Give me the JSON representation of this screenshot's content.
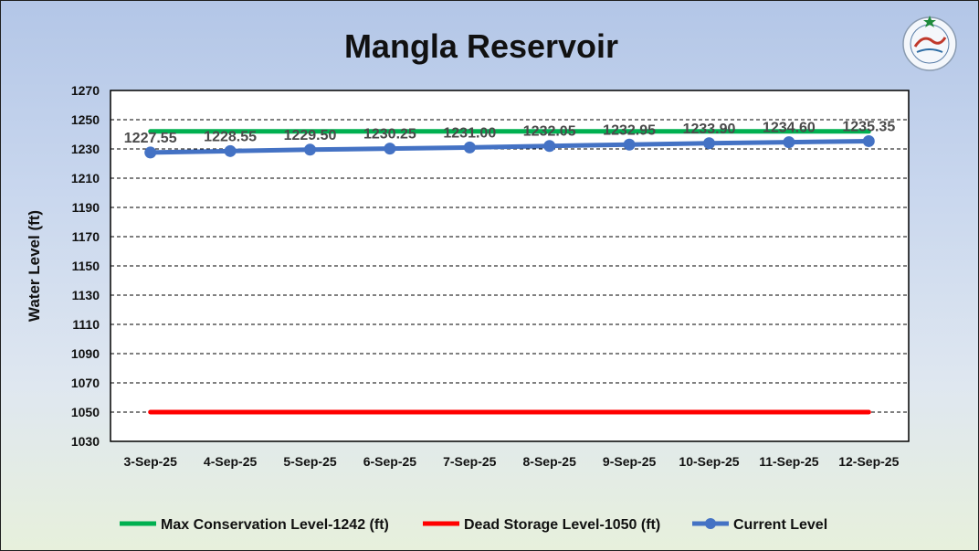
{
  "chart_data": {
    "type": "line",
    "title": "Mangla Reservoir",
    "ylabel": "Water Level (ft)",
    "xlabel": "",
    "ylim": [
      1030,
      1270
    ],
    "yticks": [
      1030,
      1050,
      1070,
      1090,
      1110,
      1130,
      1150,
      1170,
      1190,
      1210,
      1230,
      1250,
      1270
    ],
    "grid": "horizontal dashed",
    "legend_position": "bottom",
    "categories": [
      "3-Sep-25",
      "4-Sep-25",
      "5-Sep-25",
      "6-Sep-25",
      "7-Sep-25",
      "8-Sep-25",
      "9-Sep-25",
      "10-Sep-25",
      "11-Sep-25",
      "12-Sep-25"
    ],
    "series": [
      {
        "name": "Max Conservation Level-1242 (ft)",
        "color": "#00b050",
        "values": [
          1242,
          1242,
          1242,
          1242,
          1242,
          1242,
          1242,
          1242,
          1242,
          1242
        ]
      },
      {
        "name": "Dead Storage Level-1050 (ft)",
        "color": "#ff0000",
        "values": [
          1050,
          1050,
          1050,
          1050,
          1050,
          1050,
          1050,
          1050,
          1050,
          1050
        ]
      },
      {
        "name": "Current Level",
        "color": "#4472c4",
        "markers": true,
        "values": [
          1227.55,
          1228.55,
          1229.5,
          1230.25,
          1231.0,
          1232.05,
          1232.95,
          1233.9,
          1234.6,
          1235.35
        ],
        "labels": [
          "1227.55",
          "1228.55",
          "1229.50",
          "1230.25",
          "1231.00",
          "1232.05",
          "1232.95",
          "1233.90",
          "1234.60",
          "1235.35"
        ]
      }
    ]
  },
  "logo": {
    "icon": "pakistan-meteorological-department-logo"
  }
}
